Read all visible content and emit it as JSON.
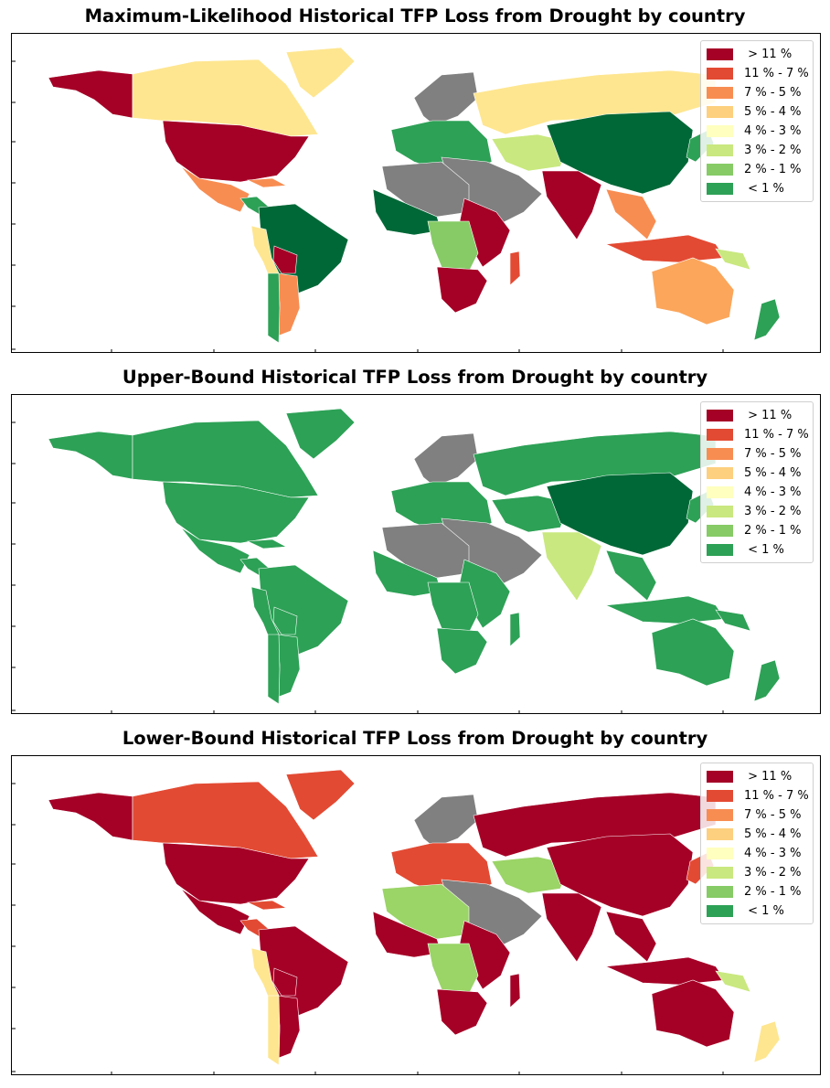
{
  "legend": {
    "items": [
      {
        "label": " > 11 %",
        "color": "#a50026"
      },
      {
        "label": "11 % - 7 %",
        "color": "#e34a33"
      },
      {
        "label": "7 % - 5 %",
        "color": "#f88d52"
      },
      {
        "label": "5 % - 4 %",
        "color": "#fdd07f"
      },
      {
        "label": "4 % - 3 %",
        "color": "#ffffbf"
      },
      {
        "label": "3 % - 2 %",
        "color": "#c9e87f"
      },
      {
        "label": "2 % - 1 %",
        "color": "#86cb66"
      },
      {
        "label": " < 1 %",
        "color": "#2da156"
      }
    ]
  },
  "colors": {
    "no_data": "#808080",
    "darkest_green": "#006837"
  },
  "maps": [
    {
      "title": "Maximum-Likelihood Historical TFP Loss from Drought by country",
      "regions": {
        "alaska": "#a50026",
        "canada": "#fee690",
        "greenland": "#fee690",
        "usa": "#a50026",
        "mexico": "#f88d52",
        "central_america": "#2da156",
        "caribbean": "#f88d52",
        "south_america": "#006837",
        "andes": "#fee690",
        "bolivia": "#a50026",
        "argentina": "#f88d52",
        "chile": "#2da156",
        "europe": "#2da156",
        "scandinavia": "#808080",
        "russia": "#fee690",
        "china": "#006837",
        "central_asia": "#c9e87f",
        "middle_east": "#808080",
        "india": "#a50026",
        "southeast_asia": "#f88d52",
        "indonesia": "#e34a33",
        "west_africa": "#006837",
        "sahara": "#808080",
        "east_africa": "#a50026",
        "central_africa": "#86cb66",
        "southern_africa": "#a50026",
        "madagascar": "#e34a33",
        "australia": "#fba65b",
        "new_zealand": "#2da156",
        "japan": "#2da156",
        "png": "#c9e87f"
      }
    },
    {
      "title": "Upper-Bound Historical TFP Loss from Drought by country",
      "regions": {
        "alaska": "#2da156",
        "canada": "#2da156",
        "greenland": "#2da156",
        "usa": "#2da156",
        "mexico": "#2da156",
        "central_america": "#2da156",
        "caribbean": "#2da156",
        "south_america": "#2da156",
        "andes": "#2da156",
        "bolivia": "#2da156",
        "argentina": "#2da156",
        "chile": "#2da156",
        "europe": "#2da156",
        "scandinavia": "#808080",
        "russia": "#2da156",
        "china": "#006837",
        "central_asia": "#2da156",
        "middle_east": "#808080",
        "india": "#c9e87f",
        "southeast_asia": "#2da156",
        "indonesia": "#2da156",
        "west_africa": "#2da156",
        "sahara": "#808080",
        "east_africa": "#2da156",
        "central_africa": "#2da156",
        "southern_africa": "#2da156",
        "madagascar": "#2da156",
        "australia": "#2da156",
        "new_zealand": "#2da156",
        "japan": "#2da156",
        "png": "#2da156"
      }
    },
    {
      "title": "Lower-Bound Historical TFP Loss from Drought by country",
      "regions": {
        "alaska": "#a50026",
        "canada": "#e34a33",
        "greenland": "#e34a33",
        "usa": "#a50026",
        "mexico": "#a50026",
        "central_america": "#e34a33",
        "caribbean": "#e34a33",
        "south_america": "#a50026",
        "andes": "#fee690",
        "bolivia": "#a50026",
        "argentina": "#a50026",
        "chile": "#fee690",
        "europe": "#e34a33",
        "scandinavia": "#808080",
        "russia": "#a50026",
        "china": "#a50026",
        "central_asia": "#9bd467",
        "middle_east": "#808080",
        "india": "#a50026",
        "southeast_asia": "#a50026",
        "indonesia": "#a50026",
        "west_africa": "#a50026",
        "sahara": "#9bd467",
        "east_africa": "#a50026",
        "central_africa": "#9bd467",
        "southern_africa": "#a50026",
        "madagascar": "#a50026",
        "australia": "#a50026",
        "new_zealand": "#fee690",
        "japan": "#e34a33",
        "png": "#c9e87f"
      }
    }
  ]
}
